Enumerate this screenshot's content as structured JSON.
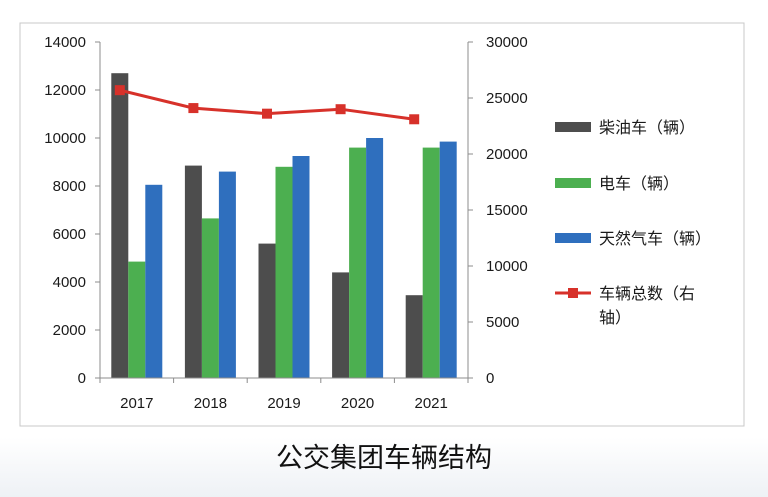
{
  "chart_data": {
    "type": "bar",
    "title": "",
    "caption": "公交集团车辆结构",
    "categories": [
      "2017",
      "2018",
      "2019",
      "2020",
      "2021"
    ],
    "series": [
      {
        "name": "柴油车（辆）",
        "type": "bar",
        "axis": "left",
        "color": "#4d4d4d",
        "values": [
          12700,
          8850,
          5600,
          4400,
          3450
        ]
      },
      {
        "name": "电车（辆）",
        "type": "bar",
        "axis": "left",
        "color": "#4caf50",
        "values": [
          4850,
          6650,
          8800,
          9600,
          9600
        ]
      },
      {
        "name": "天然气车（辆）",
        "type": "bar",
        "axis": "left",
        "color": "#2f6fbe",
        "values": [
          8050,
          8600,
          9250,
          10000,
          9850
        ]
      },
      {
        "name": "车辆总数（右轴）",
        "type": "line",
        "axis": "right",
        "color": "#d7312a",
        "values": [
          25700,
          24100,
          23600,
          24000,
          23100
        ]
      }
    ],
    "y_left": {
      "min": 0,
      "max": 14000,
      "step": 2000,
      "ticks": [
        "0",
        "2000",
        "4000",
        "6000",
        "8000",
        "10000",
        "12000",
        "14000"
      ]
    },
    "y_right": {
      "min": 0,
      "max": 30000,
      "step": 5000,
      "ticks": [
        "0",
        "5000",
        "10000",
        "15000",
        "20000",
        "25000",
        "30000"
      ]
    },
    "grid": false,
    "legend_position": "right",
    "legend_lines": [
      [
        "柴油车（辆）"
      ],
      [
        "电车（辆）"
      ],
      [
        "天然气车（辆）"
      ],
      [
        "车辆总数（右",
        "轴）"
      ]
    ]
  }
}
